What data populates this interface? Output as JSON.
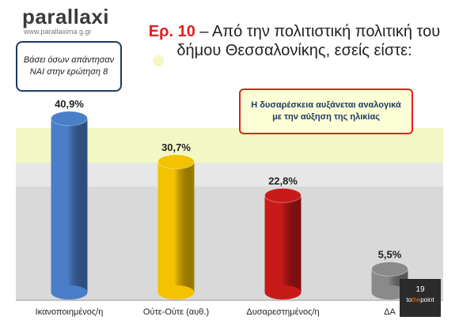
{
  "logo": {
    "name": "parallaxi",
    "url": "www.parallaxima g.gr"
  },
  "title": {
    "question_no": "Ερ. 10",
    "text": " – Από την πολιτιστική πολιτική του δήμου Θεσσαλονίκης, εσείς είστε:"
  },
  "basis_note": "Βάσει όσων απάντησαν ΝΑΙ στην ερώτηση 8",
  "insight_note": "Η δυσαρέσκεια αυξάνεται αναλογικά με την αύξηση της ηλικίας",
  "badge": {
    "page_number": "19",
    "brand_prefix": "to",
    "brand_accent": "the",
    "brand_suffix": "point"
  },
  "colors": {
    "accent_red": "#e0201b",
    "band": "#f3f7c4",
    "navy": "#1f3864"
  },
  "chart_data": {
    "type": "bar",
    "categories": [
      "Ικανοποιημένος/η",
      "Ούτε-Ούτε (αυθ.)",
      "Δυσαρεστημένος/η",
      "ΔΑ"
    ],
    "values": [
      40.9,
      30.7,
      22.8,
      5.5
    ],
    "value_labels": [
      "40,9%",
      "30,7%",
      "22,8%",
      "5,5%"
    ],
    "colors": [
      "#4a7ec9",
      "#f4c200",
      "#c91a1a",
      "#8a8a8a"
    ],
    "ylim": [
      0,
      50
    ],
    "grid": false,
    "legend": "none"
  }
}
